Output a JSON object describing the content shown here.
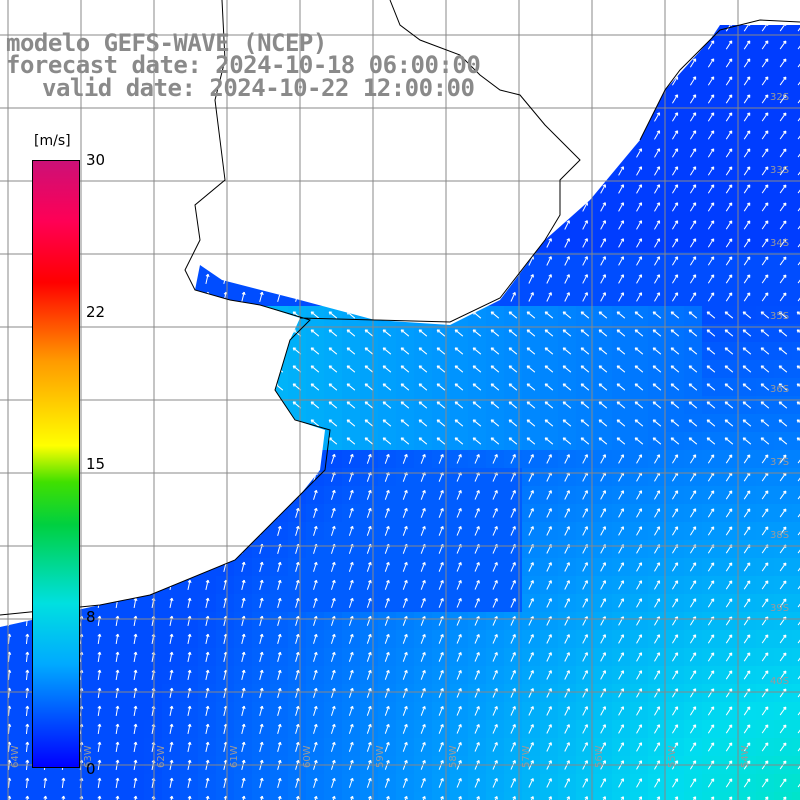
{
  "header": {
    "line1": "modelo GEFS-WAVE (NCEP)",
    "line2": "forecast date: 2024-10-18 06:00:00",
    "line3": "valid date: 2024-10-22 12:00:00"
  },
  "colorbar": {
    "unit": "[m/s]",
    "ticks": [
      "30",
      "22",
      "15",
      "8",
      "0"
    ],
    "min": 0,
    "max": 30,
    "colors": [
      "#0000ff",
      "#00aaff",
      "#00e0e0",
      "#00d040",
      "#ffff00",
      "#ff9a00",
      "#ff0000",
      "#cc1077"
    ]
  },
  "map": {
    "lat_labels": [
      "32S",
      "33S",
      "34S",
      "35S",
      "36S",
      "37S",
      "38S",
      "39S",
      "40S"
    ],
    "lon_labels": [
      "64W",
      "63W",
      "62W",
      "61W",
      "60W",
      "59W",
      "58W",
      "57W",
      "56W",
      "55W",
      "54W"
    ],
    "land_color": "#ffffff",
    "grid_color": "#888888",
    "coast_color": "#000000"
  }
}
